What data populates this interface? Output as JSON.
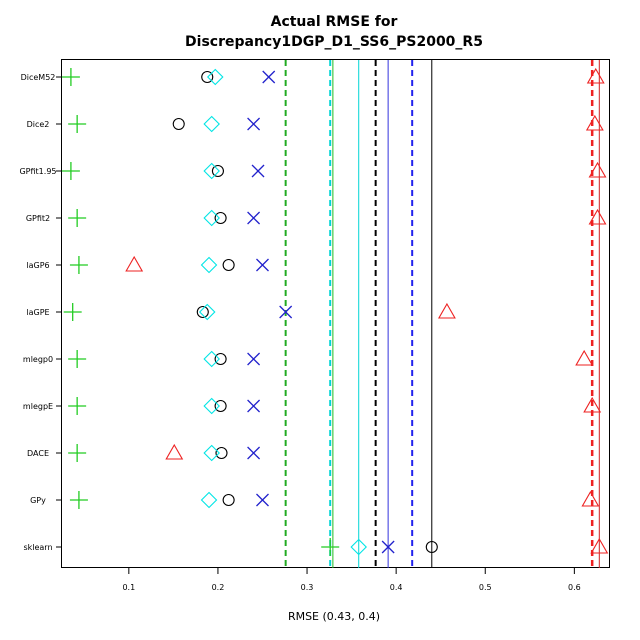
{
  "chart_data": {
    "type": "scatter",
    "title_line1": "Actual RMSE for",
    "title_line2": "Discrepancy1DGP_D1_SS6_PS2000_R5",
    "xlabel": "RMSE (0.43, 0.4)",
    "ylabel": "",
    "xlim": [
      0.025,
      0.64
    ],
    "x_ticks": [
      0.1,
      0.2,
      0.3,
      0.4,
      0.5,
      0.6
    ],
    "x_tick_labels": [
      "0.1",
      "0.2",
      "0.3",
      "0.4",
      "0.5",
      "0.6"
    ],
    "categories": [
      "DiceM52",
      "Dice2",
      "GPfit1.95",
      "GPfit2",
      "laGP6",
      "laGPE",
      "mlegp0",
      "mlegpE",
      "DACE",
      "GPy",
      "sklearn"
    ],
    "grid": false,
    "legend": "none",
    "series": [
      {
        "marker": "plus",
        "color": "#22cc22",
        "values": [
          0.035,
          0.042,
          0.035,
          0.042,
          0.044,
          0.037,
          0.042,
          0.042,
          0.042,
          0.044,
          0.326
        ]
      },
      {
        "marker": "circle",
        "color": "#000000",
        "values": [
          0.188,
          0.156,
          0.2,
          0.203,
          0.212,
          0.183,
          0.203,
          0.203,
          0.204,
          0.212,
          0.44
        ]
      },
      {
        "marker": "diamond",
        "color": "#00e5e5",
        "values": [
          0.197,
          0.193,
          0.193,
          0.193,
          0.19,
          0.188,
          0.193,
          0.193,
          0.193,
          0.19,
          0.358
        ]
      },
      {
        "marker": "cross",
        "color": "#2222cc",
        "values": [
          0.257,
          0.24,
          0.245,
          0.24,
          0.25,
          0.276,
          0.24,
          0.24,
          0.24,
          0.25,
          0.391
        ]
      },
      {
        "marker": "triangle",
        "color": "#ee2222",
        "values": [
          0.624,
          0.623,
          0.626,
          0.626,
          0.106,
          0.457,
          0.611,
          0.62,
          0.151,
          0.618,
          0.628
        ]
      }
    ],
    "vlines": [
      {
        "x": 0.276,
        "color": "#22aa22",
        "style": "dashed",
        "width": 2
      },
      {
        "x": 0.326,
        "color": "#00d5d5",
        "style": "dashed",
        "width": 2
      },
      {
        "x": 0.329,
        "color": "#22bb22",
        "style": "solid",
        "width": 1
      },
      {
        "x": 0.358,
        "color": "#00d5d5",
        "style": "solid",
        "width": 1
      },
      {
        "x": 0.377,
        "color": "#000000",
        "style": "dashed",
        "width": 2
      },
      {
        "x": 0.391,
        "color": "#3333dd",
        "style": "solid",
        "width": 1
      },
      {
        "x": 0.418,
        "color": "#2222ee",
        "style": "dashed",
        "width": 2
      },
      {
        "x": 0.44,
        "color": "#000000",
        "style": "solid",
        "width": 1
      },
      {
        "x": 0.62,
        "color": "#ee2222",
        "style": "dashed",
        "width": 2.5
      },
      {
        "x": 0.628,
        "color": "#cc2222",
        "style": "solid",
        "width": 1
      }
    ]
  }
}
